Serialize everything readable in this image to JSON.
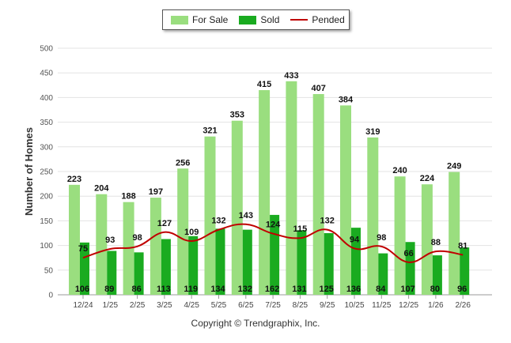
{
  "chart_data": {
    "type": "bar",
    "title": "",
    "xlabel": "",
    "ylabel": "Number of Homes",
    "ylim": [
      0,
      500
    ],
    "yticks": [
      0,
      50,
      100,
      150,
      200,
      250,
      300,
      350,
      400,
      450,
      500
    ],
    "categories": [
      "12/24",
      "1/25",
      "2/25",
      "3/25",
      "4/25",
      "5/25",
      "6/25",
      "7/25",
      "8/25",
      "9/25",
      "10/25",
      "11/25",
      "12/25",
      "1/26",
      "2/26"
    ],
    "series": [
      {
        "name": "For Sale",
        "kind": "bar",
        "color": "#9ade7f",
        "values": [
          223,
          204,
          188,
          197,
          256,
          321,
          353,
          415,
          433,
          407,
          384,
          319,
          240,
          224,
          249
        ]
      },
      {
        "name": "Sold",
        "kind": "bar",
        "color": "#1aab20",
        "values": [
          106,
          89,
          86,
          113,
          119,
          134,
          132,
          162,
          131,
          125,
          136,
          84,
          107,
          80,
          96
        ]
      },
      {
        "name": "Pended",
        "kind": "line",
        "color": "#c00000",
        "values": [
          75,
          93,
          98,
          127,
          109,
          132,
          143,
          124,
          115,
          132,
          94,
          98,
          66,
          88,
          81
        ]
      }
    ],
    "legend_position": "top-center",
    "grid": true
  },
  "copyright": "Copyright © Trendgraphix, Inc."
}
